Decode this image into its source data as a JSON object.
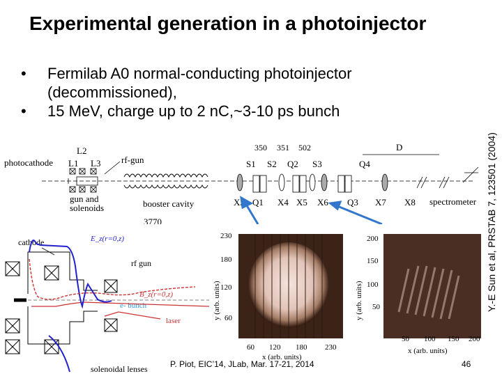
{
  "slide": {
    "title": "Experimental generation in a photoinjector",
    "bullets": [
      "Fermilab A0 normal-conducting photoinjector",
      "(decommissioned),",
      "15 MeV, charge up to 2 nC,~3-10 ps bunch"
    ],
    "citation": "Y.-E Sun et al, PRSTAB 7, 123501 (2004)",
    "footer": "P. Piot, EIC’14, JLab, Mar. 17-21, 2014",
    "page_number": "46"
  },
  "beamline": {
    "labels": {
      "photocathode": "photocathode",
      "rf_gun": "rf-gun",
      "l1": "L1",
      "l2": "L2",
      "l3": "L3",
      "gun_solenoids_1": "gun and",
      "gun_solenoids_2": "solenoids",
      "booster": "booster cavity",
      "spectrometer": "spectrometer",
      "top_350": "350",
      "top_351": "351",
      "top_502": "502",
      "top_d": "D",
      "s1": "S1",
      "s2": "S2",
      "q2": "Q2",
      "s3": "S3",
      "q4": "Q4",
      "x3": "X3",
      "q1": "Q1",
      "x4": "X4",
      "x5": "X5",
      "x6": "X6",
      "q3": "Q3",
      "x7": "X7",
      "x8": "X8",
      "dist": "3770"
    }
  },
  "gun_diagram": {
    "cathode": "cathode",
    "ez": "E_z(r=0,z)",
    "rf_gun": "rf gun",
    "bz": "B_z(r=0,z)",
    "ebunch": "e- bunch",
    "laser": "laser",
    "lenses": "solenoidal lenses",
    "colors": {
      "ez": "#2222cc",
      "bz": "#cc3333",
      "laser": "#cc3333",
      "ebunch": "#3399dd"
    }
  },
  "image_left": {
    "ylabel": "y (arb. units)",
    "xlabel": "x (arb. units)",
    "yticks": [
      "230",
      "180",
      "120",
      "60"
    ],
    "xticks": [
      "60",
      "120",
      "180",
      "230"
    ]
  },
  "image_right": {
    "ylabel": "y (arb. units)",
    "xlabel": "x (arb. units)",
    "yticks": [
      "200",
      "150",
      "100",
      "50"
    ],
    "xticks": [
      "50",
      "100",
      "150",
      "200"
    ]
  }
}
